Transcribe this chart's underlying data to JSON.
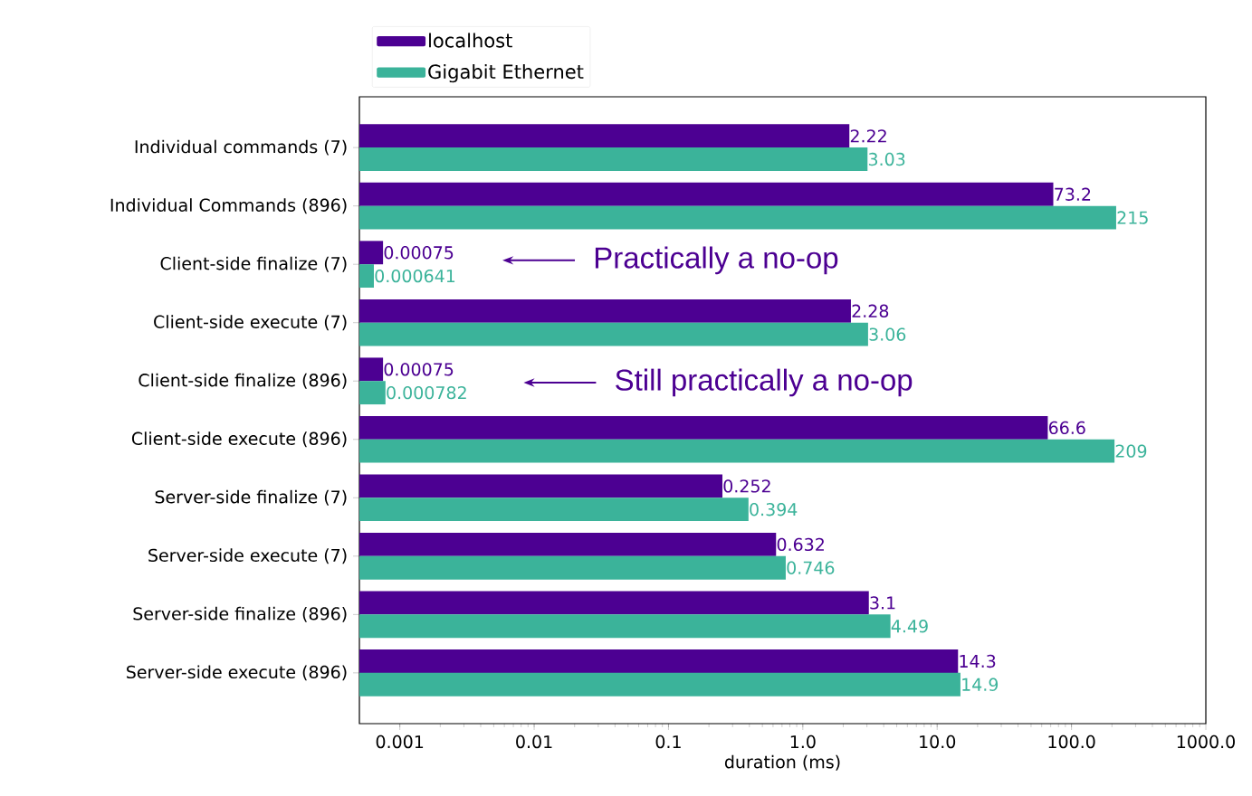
{
  "chart_data": {
    "type": "bar",
    "orientation": "horizontal",
    "log": "x",
    "xlabel": "duration (ms)",
    "categories": [
      "Individual commands (7)",
      "Individual Commands (896)",
      "Client-side finalize (7)",
      "Client-side execute (7)",
      "Client-side finalize (896)",
      "Client-side execute (896)",
      "Server-side finalize (7)",
      "Server-side execute (7)",
      "Server-side finalize (896)",
      "Server-side execute (896)"
    ],
    "series": [
      {
        "name": "localhost",
        "color": "#4c0092",
        "values": [
          2.22,
          73.2,
          0.00075,
          2.28,
          0.00075,
          66.6,
          0.252,
          0.632,
          3.1,
          14.3
        ]
      },
      {
        "name": "Gigabit Ethernet",
        "color": "#3bb39a",
        "values": [
          3.03,
          215,
          0.000641,
          3.06,
          0.000782,
          209,
          0.394,
          0.746,
          4.49,
          14.9
        ]
      }
    ],
    "xlim": [
      0.0005,
      1000
    ],
    "xticks": [
      0.001,
      0.01,
      0.1,
      {
        "value": 1,
        "label": "1.0"
      },
      {
        "value": 10,
        "label": "10.0"
      },
      {
        "value": 100,
        "label": "100.0"
      },
      {
        "value": 1000,
        "label": "1000.0"
      }
    ],
    "data_labels": true,
    "legend": "top left",
    "grid": false,
    "annotations": [
      "Practically a no-op",
      "Still practically a no-op"
    ]
  }
}
